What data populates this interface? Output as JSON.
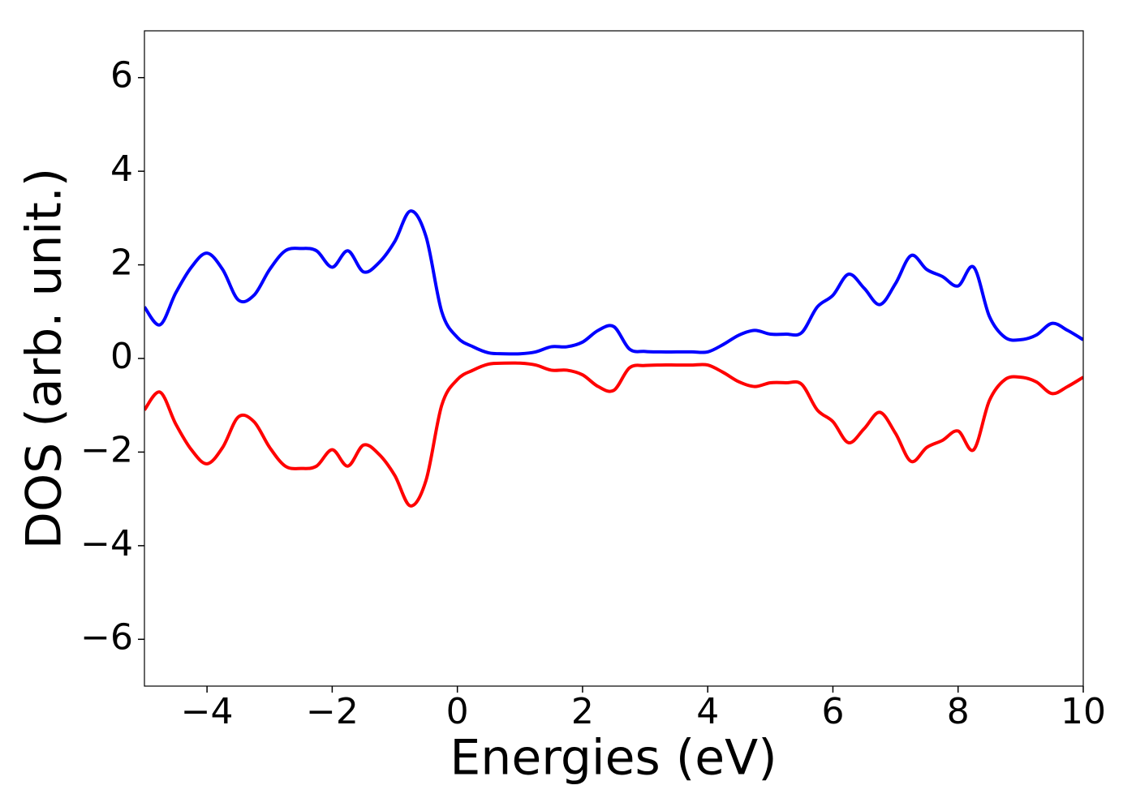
{
  "chart_data": {
    "type": "line",
    "x_label": "Energies (eV)",
    "y_label": "DOS (arb. unit.)",
    "xlim": [
      -5,
      10
    ],
    "ylim": [
      -7,
      7
    ],
    "xticks": [
      {
        "value": -4,
        "label": "−4"
      },
      {
        "value": -2,
        "label": "−2"
      },
      0,
      2,
      4,
      6,
      8,
      10
    ],
    "yticks": [
      {
        "value": -6,
        "label": "−6"
      },
      {
        "value": -4,
        "label": "−4"
      },
      {
        "value": -2,
        "label": "−2"
      },
      0,
      2,
      4,
      6
    ],
    "grid": false,
    "x": [
      -5,
      -4.75,
      -4.5,
      -4.25,
      -4,
      -3.75,
      -3.5,
      -3.25,
      -3,
      -2.75,
      -2.5,
      -2.25,
      -2,
      -1.75,
      -1.5,
      -1.25,
      -1,
      -0.75,
      -0.5,
      -0.25,
      0,
      0.25,
      0.5,
      0.75,
      1,
      1.25,
      1.5,
      1.75,
      2,
      2.25,
      2.5,
      2.75,
      3,
      3.25,
      3.5,
      3.75,
      4,
      4.25,
      4.5,
      4.75,
      5,
      5.25,
      5.5,
      5.75,
      6,
      6.25,
      6.5,
      6.75,
      7,
      7.25,
      7.5,
      7.75,
      8,
      8.25,
      8.5,
      8.75,
      9,
      9.25,
      9.5,
      9.75,
      10
    ],
    "series": [
      {
        "color": "#0000ff",
        "values": [
          1.1,
          0.72,
          1.4,
          1.95,
          2.25,
          1.9,
          1.25,
          1.35,
          1.9,
          2.3,
          2.35,
          2.3,
          1.95,
          2.3,
          1.85,
          2.05,
          2.5,
          3.15,
          2.6,
          1.0,
          0.45,
          0.25,
          0.12,
          0.1,
          0.1,
          0.14,
          0.25,
          0.25,
          0.35,
          0.6,
          0.68,
          0.2,
          0.15,
          0.14,
          0.14,
          0.14,
          0.14,
          0.3,
          0.5,
          0.6,
          0.52,
          0.52,
          0.55,
          1.1,
          1.35,
          1.8,
          1.5,
          1.15,
          1.6,
          2.2,
          1.9,
          1.75,
          1.55,
          1.95,
          0.9,
          0.45,
          0.4,
          0.5,
          0.75,
          0.6,
          0.4
        ]
      },
      {
        "color": "#ff0000",
        "values": [
          -1.1,
          -0.72,
          -1.4,
          -1.95,
          -2.25,
          -1.9,
          -1.25,
          -1.35,
          -1.9,
          -2.3,
          -2.35,
          -2.3,
          -1.95,
          -2.3,
          -1.85,
          -2.05,
          -2.5,
          -3.15,
          -2.6,
          -1.0,
          -0.45,
          -0.25,
          -0.12,
          -0.1,
          -0.1,
          -0.14,
          -0.25,
          -0.25,
          -0.35,
          -0.6,
          -0.68,
          -0.2,
          -0.15,
          -0.14,
          -0.14,
          -0.14,
          -0.14,
          -0.3,
          -0.5,
          -0.6,
          -0.52,
          -0.52,
          -0.55,
          -1.1,
          -1.35,
          -1.8,
          -1.5,
          -1.15,
          -1.6,
          -2.2,
          -1.9,
          -1.75,
          -1.55,
          -1.95,
          -0.9,
          -0.45,
          -0.4,
          -0.5,
          -0.75,
          -0.6,
          -0.4
        ]
      }
    ]
  }
}
